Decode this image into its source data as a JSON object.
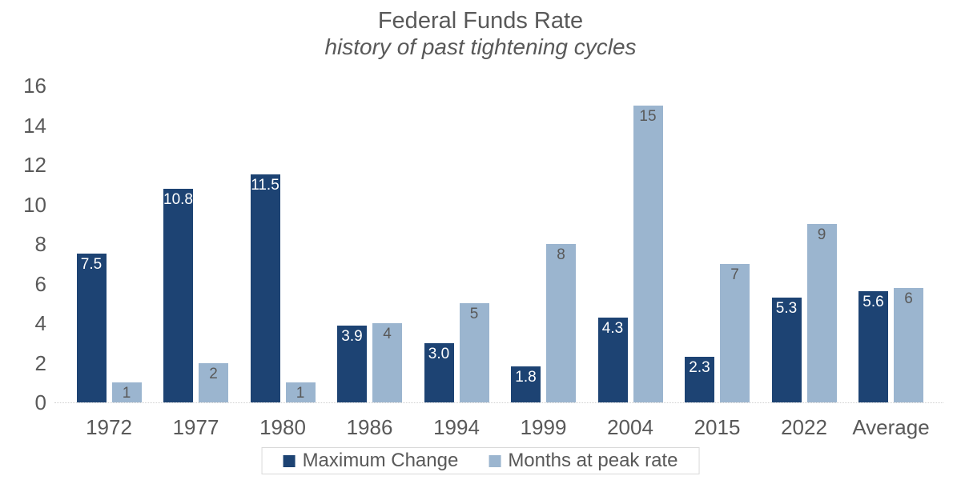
{
  "chart_data": {
    "type": "bar",
    "title": "Federal Funds Rate",
    "subtitle": "history of past tightening cycles",
    "categories": [
      "1972",
      "1977",
      "1980",
      "1986",
      "1994",
      "1999",
      "2004",
      "2015",
      "2022",
      "Average"
    ],
    "series": [
      {
        "name": "Maximum Change",
        "color": "#1d4373",
        "label_color": "#ffffff",
        "values": [
          7.5,
          10.8,
          11.5,
          3.9,
          3.0,
          1.8,
          4.3,
          2.3,
          5.3,
          5.6
        ],
        "labels": [
          "7.5",
          "10.8",
          "11.5",
          "3.9",
          "3.0",
          "1.8",
          "4.3",
          "2.3",
          "5.3",
          "5.6"
        ]
      },
      {
        "name": "Months at peak rate",
        "color": "#9bb5cf",
        "label_color": "#595959",
        "values": [
          1,
          2,
          1,
          4,
          5,
          8,
          15,
          7,
          9,
          5.8
        ],
        "labels": [
          "1",
          "2",
          "1",
          "4",
          "5",
          "8",
          "15",
          "7",
          "9",
          "6"
        ]
      }
    ],
    "y_axis": {
      "min": 0,
      "max": 16,
      "step": 2,
      "tick_labels": [
        "0",
        "2",
        "4",
        "6",
        "8",
        "10",
        "12",
        "14",
        "16"
      ]
    },
    "legend": {
      "position": "bottom",
      "items": [
        "Maximum Change",
        "Months at peak rate"
      ]
    },
    "grid": false,
    "text_color": "#595959",
    "background_color": "#ffffff"
  }
}
